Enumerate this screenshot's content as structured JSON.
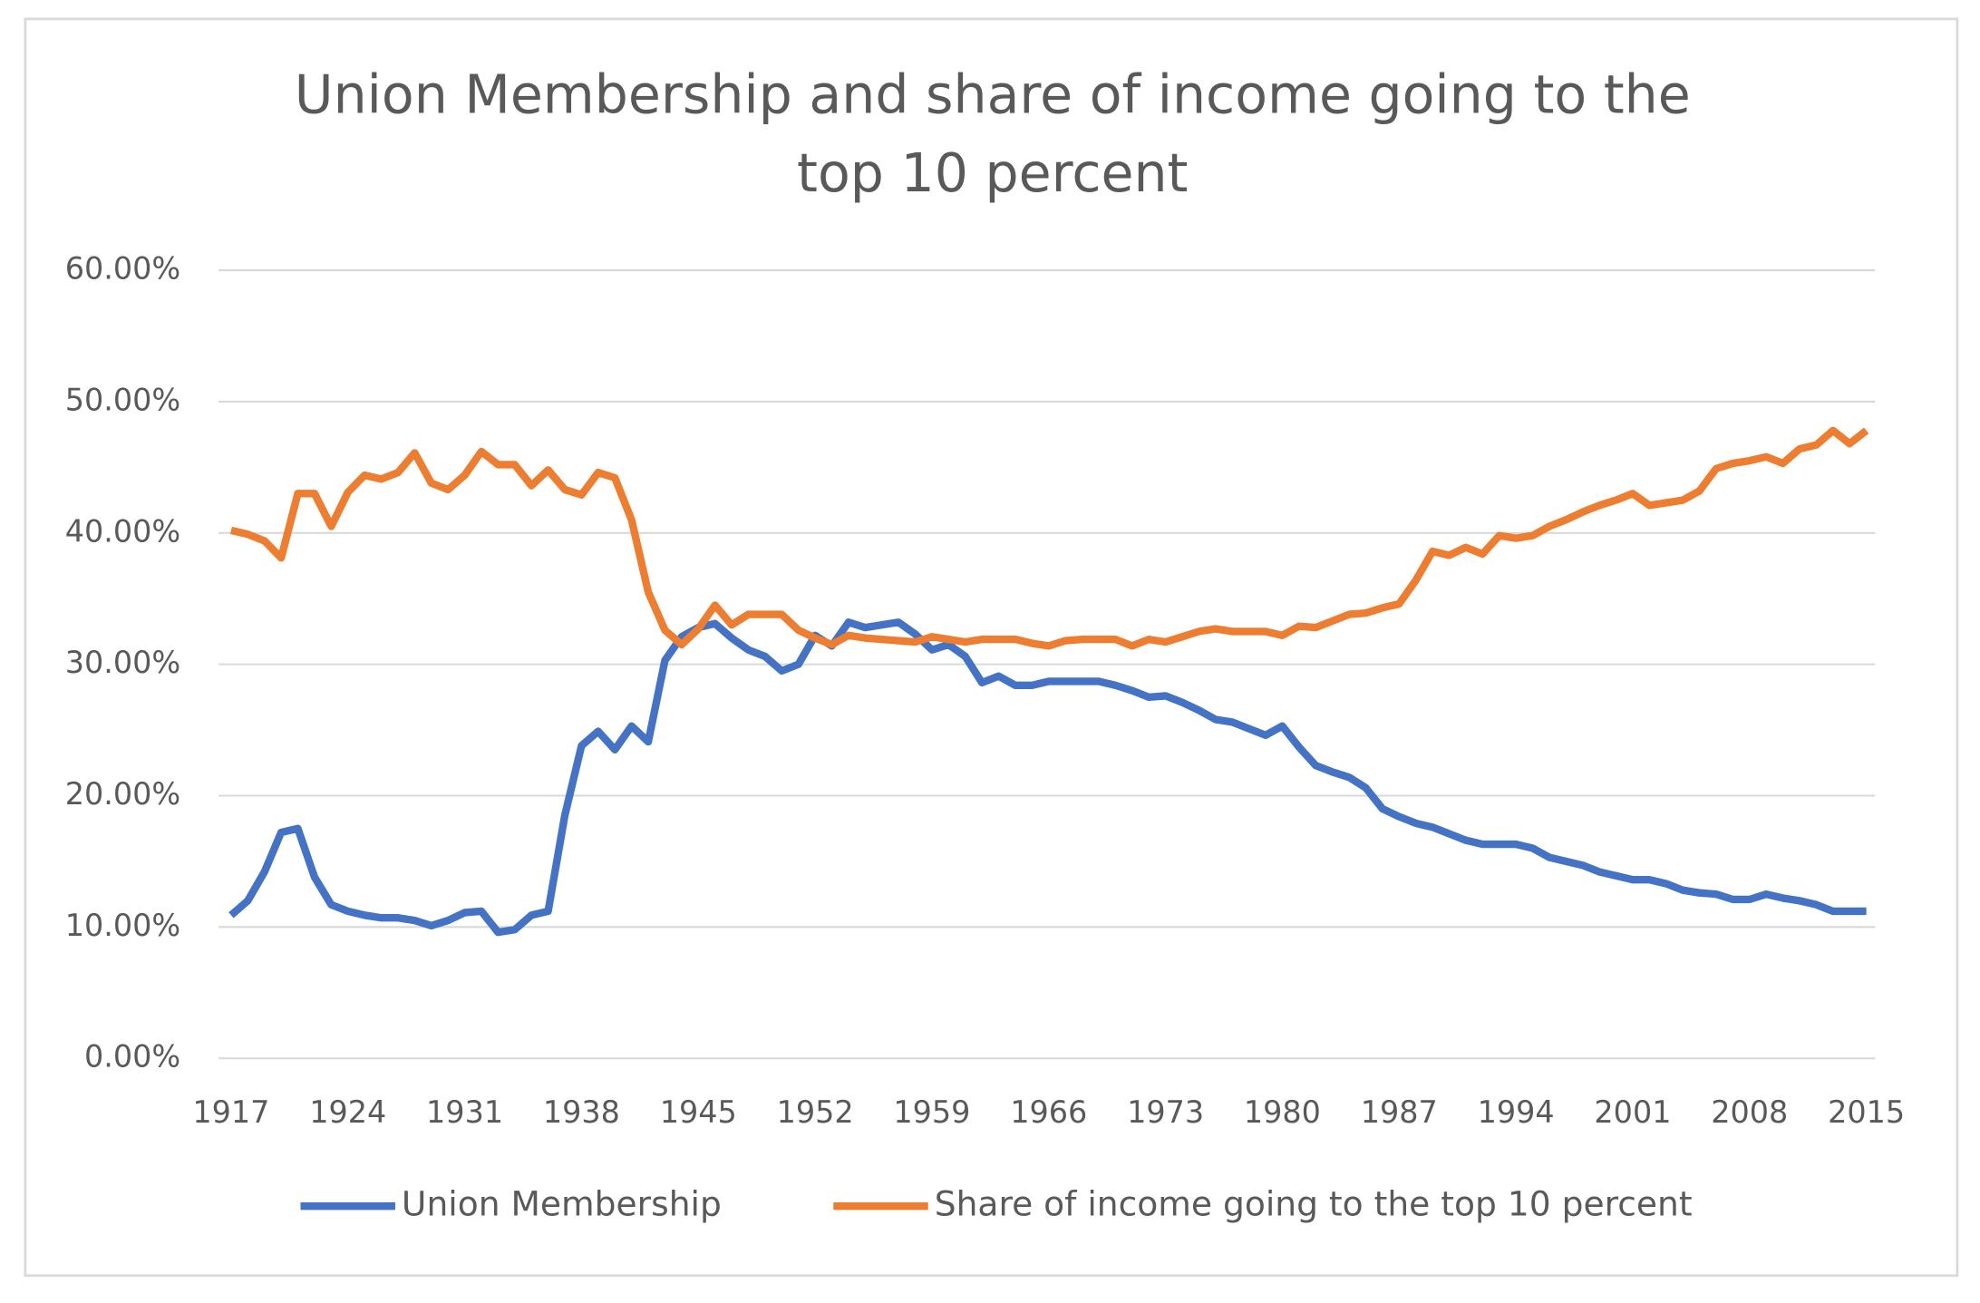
{
  "chart_data": {
    "type": "line",
    "title": "Union Membership and share of income going to the top 10 percent",
    "categories": [
      "1917",
      null,
      null,
      null,
      null,
      null,
      null,
      "1924",
      null,
      null,
      null,
      null,
      null,
      null,
      "1931",
      null,
      null,
      null,
      null,
      null,
      null,
      "1938",
      null,
      null,
      null,
      null,
      null,
      null,
      "1945",
      null,
      null,
      null,
      null,
      null,
      null,
      "1952",
      null,
      null,
      null,
      null,
      null,
      null,
      "1959",
      null,
      null,
      null,
      null,
      null,
      null,
      "1966",
      null,
      null,
      null,
      null,
      null,
      null,
      "1973",
      null,
      null,
      null,
      null,
      null,
      null,
      "1980",
      null,
      null,
      null,
      null,
      null,
      null,
      "1987",
      null,
      null,
      null,
      null,
      null,
      null,
      "1994",
      null,
      null,
      null,
      null,
      null,
      null,
      "2001",
      null,
      null,
      null,
      null,
      null,
      null,
      "2008",
      null,
      null,
      null,
      null,
      null,
      null,
      "2015"
    ],
    "series": [
      {
        "name": "Union Membership",
        "color": "#4472c4",
        "values": [
          10.9,
          12,
          14.2,
          17.2,
          17.5,
          13.8,
          11.7,
          11.2,
          10.9,
          10.7,
          10.7,
          10.5,
          10.1,
          10.5,
          11.1,
          11.2,
          9.6,
          9.8,
          10.9,
          11.2,
          18.5,
          23.8,
          24.9,
          23.5,
          25.3,
          24.1,
          30.3,
          32.1,
          32.8,
          33.1,
          32,
          31.1,
          30.6,
          29.5,
          30,
          32.2,
          31.4,
          33.2,
          32.8,
          33,
          33.2,
          32.3,
          31.1,
          31.5,
          30.6,
          28.6,
          29.1,
          28.4,
          28.4,
          28.7,
          28.7,
          28.7,
          28.7,
          28.4,
          28,
          27.5,
          27.6,
          27.1,
          26.5,
          25.8,
          25.6,
          25.1,
          24.6,
          25.3,
          23.7,
          22.3,
          21.8,
          21.4,
          20.6,
          19,
          18.4,
          17.9,
          17.6,
          17.1,
          16.6,
          16.3,
          16.3,
          16.3,
          16,
          15.3,
          15,
          14.7,
          14.2,
          13.9,
          13.6,
          13.6,
          13.3,
          12.8,
          12.6,
          12.5,
          12.1,
          12.1,
          12.5,
          12.2,
          12,
          11.7,
          11.2,
          11.2,
          11.2
        ]
      },
      {
        "name": "Share of income going to the top 10 percent",
        "color": "#ed7d31",
        "values": [
          40.2,
          39.9,
          39.4,
          38.1,
          43,
          43,
          40.5,
          43.1,
          44.4,
          44.1,
          44.6,
          46.1,
          43.8,
          43.3,
          44.4,
          46.2,
          45.2,
          45.2,
          43.6,
          44.8,
          43.3,
          42.9,
          44.6,
          44.2,
          41,
          35.5,
          32.6,
          31.5,
          32.7,
          34.5,
          33,
          33.8,
          33.8,
          33.8,
          32.6,
          32,
          31.5,
          32.2,
          32,
          31.9,
          31.8,
          31.7,
          32.1,
          31.9,
          31.7,
          31.9,
          31.9,
          31.9,
          31.6,
          31.4,
          31.8,
          31.9,
          31.9,
          31.9,
          31.4,
          31.9,
          31.7,
          32.1,
          32.5,
          32.7,
          32.5,
          32.5,
          32.5,
          32.2,
          32.9,
          32.8,
          33.3,
          33.8,
          33.9,
          34.3,
          34.6,
          36.4,
          38.6,
          38.3,
          38.9,
          38.4,
          39.8,
          39.6,
          39.8,
          40.5,
          41,
          41.6,
          42.1,
          42.5,
          43,
          42.1,
          42.3,
          42.5,
          43.2,
          44.9,
          45.3,
          45.5,
          45.8,
          45.3,
          46.4,
          46.7,
          47.8,
          46.8,
          47.8
        ]
      }
    ],
    "ylim": [
      0,
      60
    ],
    "yticks": [
      {
        "value": 0,
        "label": "0.00%"
      },
      {
        "value": 10,
        "label": "10.00%"
      },
      {
        "value": 20,
        "label": "20.00%"
      },
      {
        "value": 30,
        "label": "30.00%"
      },
      {
        "value": 40,
        "label": "40.00%"
      },
      {
        "value": 50,
        "label": "50.00%"
      },
      {
        "value": 60,
        "label": "60.00%"
      }
    ],
    "grid": true,
    "legend": "bottom"
  }
}
